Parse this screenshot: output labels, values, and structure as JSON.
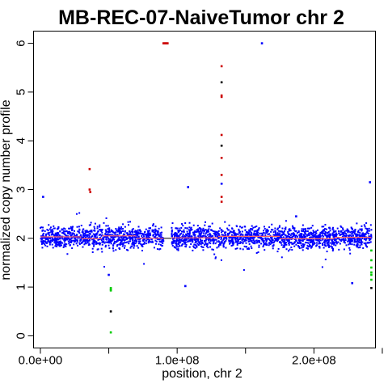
{
  "chart_data": {
    "type": "scatter",
    "title": "MB-REC-07-NaiveTumor chr 2",
    "xlabel": "position, chr 2",
    "ylabel": "normalized copy number profile",
    "xlim": [
      -5000000,
      245000000
    ],
    "ylim": [
      -0.25,
      6.25
    ],
    "x_ticks": [
      {
        "value": 0,
        "label": "0.0e+00"
      },
      {
        "value": 100000000,
        "label": "1.0e+08"
      },
      {
        "value": 200000000,
        "label": "2.0e+08"
      }
    ],
    "x_minor_ticks": [
      50000000,
      150000000,
      250000000
    ],
    "y_ticks": [
      {
        "value": 0,
        "label": "0"
      },
      {
        "value": 1,
        "label": "1"
      },
      {
        "value": 2,
        "label": "2"
      },
      {
        "value": 3,
        "label": "3"
      },
      {
        "value": 4,
        "label": "4"
      },
      {
        "value": 5,
        "label": "5"
      },
      {
        "value": 6,
        "label": "6"
      }
    ],
    "grid": false,
    "legend": "none",
    "centromere_gap": [
      90000000,
      96000000
    ],
    "bulk": {
      "color": "#0000ff",
      "x_start": 0,
      "x_end": 242000000,
      "y_center": 2.02,
      "y_spread": 0.2
    },
    "segments": {
      "color": "#ff6666",
      "values": [
        {
          "x0": 0,
          "x1": 30000000,
          "y": 2.03
        },
        {
          "x0": 30000000,
          "x1": 45000000,
          "y": 1.99
        },
        {
          "x0": 45000000,
          "x1": 70000000,
          "y": 2.05
        },
        {
          "x0": 70000000,
          "x1": 90000000,
          "y": 2.0
        },
        {
          "x0": 96000000,
          "x1": 130000000,
          "y": 2.01
        },
        {
          "x0": 130000000,
          "x1": 175000000,
          "y": 2.04
        },
        {
          "x0": 175000000,
          "x1": 215000000,
          "y": 1.99
        },
        {
          "x0": 215000000,
          "x1": 242000000,
          "y": 2.02
        }
      ]
    },
    "gain_points": {
      "color": "#cc0000",
      "points": [
        {
          "x": 36000000,
          "y": 3.42
        },
        {
          "x": 36000000,
          "y": 3.0
        },
        {
          "x": 36500000,
          "y": 2.95
        },
        {
          "x": 90000000,
          "y": 6.0
        },
        {
          "x": 91000000,
          "y": 6.0
        },
        {
          "x": 92000000,
          "y": 6.0
        },
        {
          "x": 93000000,
          "y": 6.0
        },
        {
          "x": 132500000,
          "y": 5.53
        },
        {
          "x": 132500000,
          "y": 4.93
        },
        {
          "x": 132500000,
          "y": 4.9
        },
        {
          "x": 132500000,
          "y": 4.12
        },
        {
          "x": 132500000,
          "y": 3.65
        },
        {
          "x": 132500000,
          "y": 3.3
        },
        {
          "x": 132500000,
          "y": 2.85
        },
        {
          "x": 132500000,
          "y": 2.75
        }
      ]
    },
    "loss_points": {
      "color": "#00cc00",
      "points": [
        {
          "x": 51500000,
          "y": 0.98
        },
        {
          "x": 51500000,
          "y": 0.95
        },
        {
          "x": 51500000,
          "y": 0.93
        },
        {
          "x": 51500000,
          "y": 0.07
        },
        {
          "x": 242000000,
          "y": 1.75
        },
        {
          "x": 242000000,
          "y": 1.55
        },
        {
          "x": 242000000,
          "y": 1.4
        },
        {
          "x": 242000000,
          "y": 1.3
        },
        {
          "x": 242000000,
          "y": 1.25
        },
        {
          "x": 242000000,
          "y": 1.15
        }
      ]
    },
    "outlier_points": {
      "color": "#0000ff",
      "points": [
        {
          "x": 2000000,
          "y": 2.85
        },
        {
          "x": 108000000,
          "y": 3.05
        },
        {
          "x": 162000000,
          "y": 6.0
        },
        {
          "x": 241000000,
          "y": 3.15
        },
        {
          "x": 106000000,
          "y": 1.02
        },
        {
          "x": 228000000,
          "y": 1.08
        },
        {
          "x": 50000000,
          "y": 1.25
        },
        {
          "x": 132500000,
          "y": 3.12
        },
        {
          "x": 187000000,
          "y": 2.45
        }
      ]
    },
    "dark_points": {
      "color": "#000000",
      "points": [
        {
          "x": 51500000,
          "y": 0.5
        },
        {
          "x": 132500000,
          "y": 5.2
        },
        {
          "x": 132500000,
          "y": 3.9
        },
        {
          "x": 242000000,
          "y": 0.98
        }
      ]
    }
  }
}
